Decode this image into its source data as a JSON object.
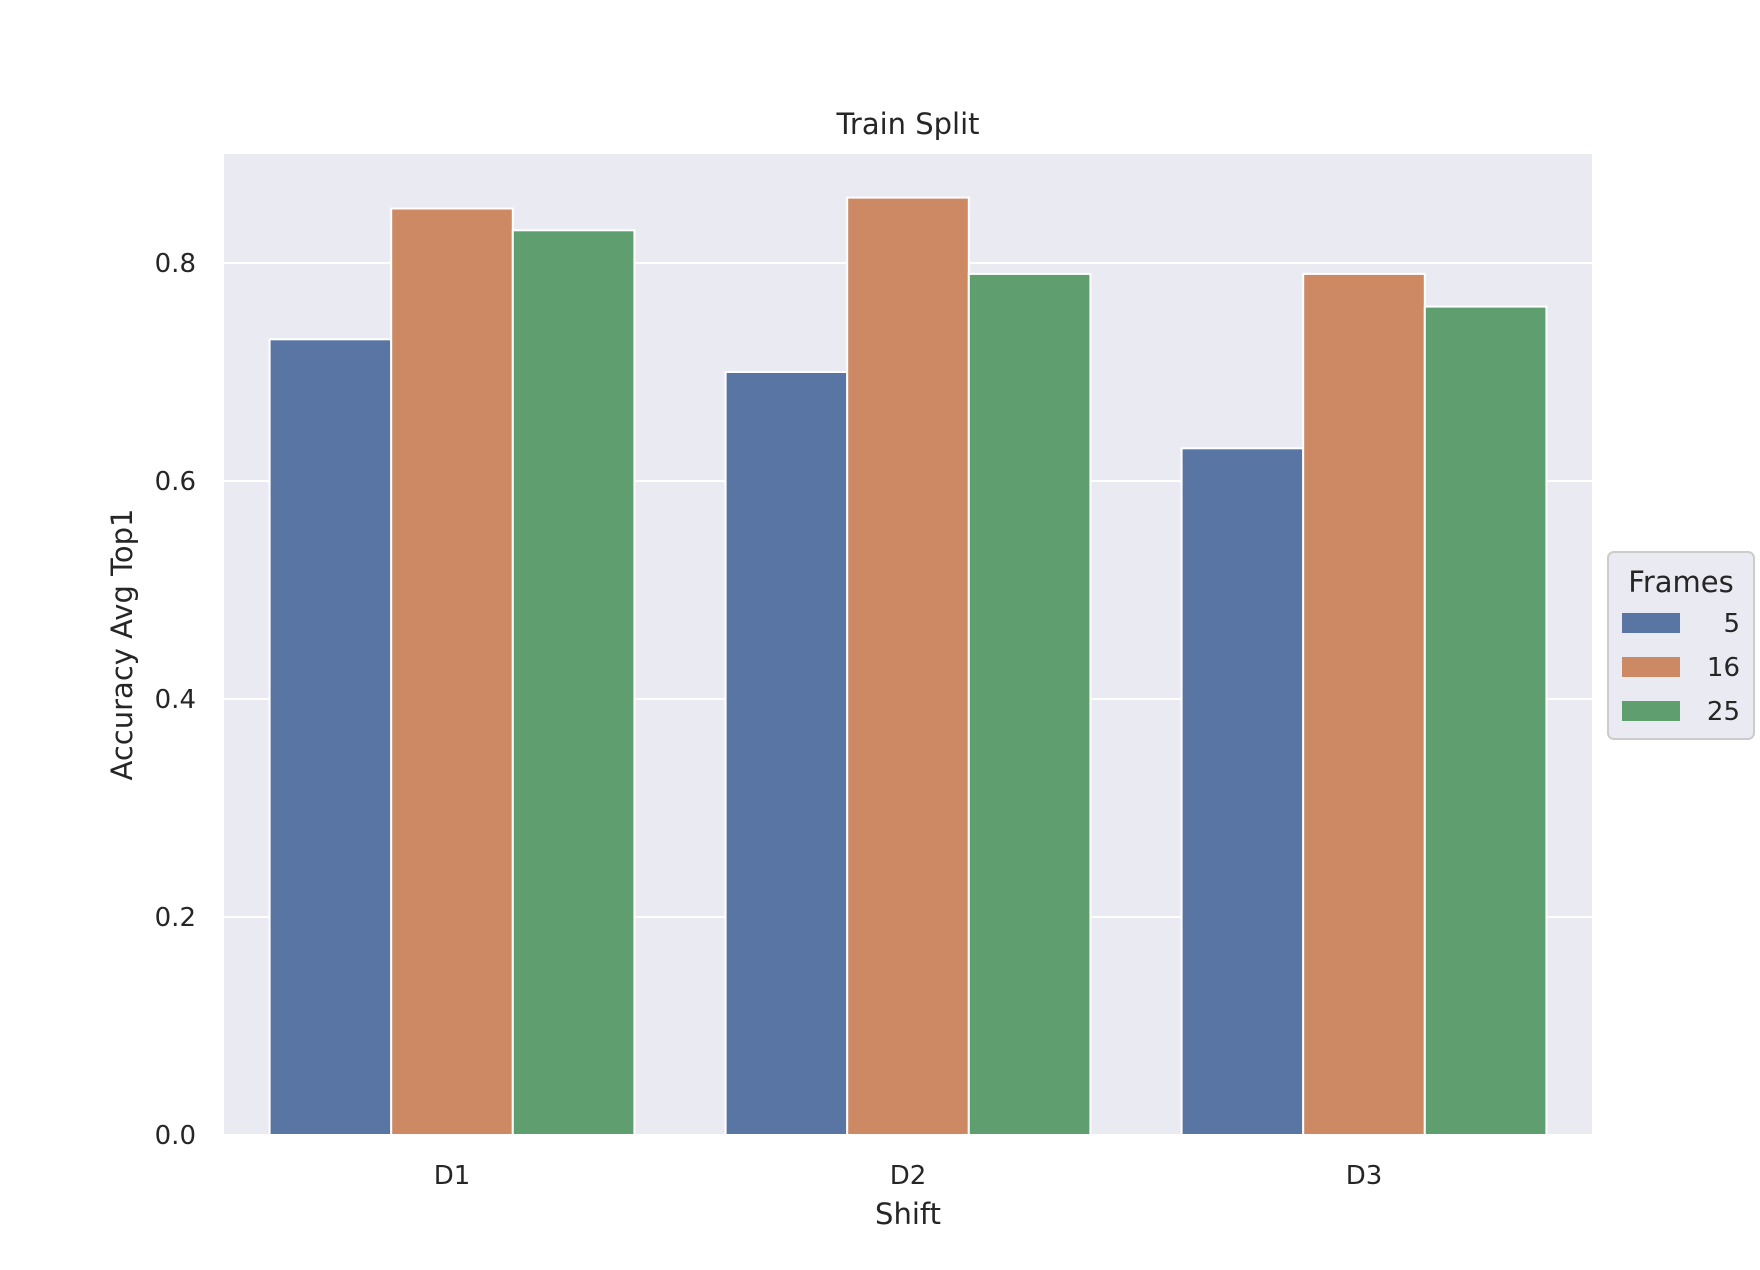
{
  "chart_data": {
    "type": "bar",
    "title": "Train Split",
    "xlabel": "Shift",
    "ylabel": "Accuracy Avg Top1",
    "categories": [
      "D1",
      "D2",
      "D3"
    ],
    "series": [
      {
        "name": "5",
        "values": [
          0.73,
          0.7,
          0.63
        ],
        "color": "#5975a4"
      },
      {
        "name": "16",
        "values": [
          0.85,
          0.86,
          0.79
        ],
        "color": "#cc8963"
      },
      {
        "name": "25",
        "values": [
          0.83,
          0.79,
          0.76
        ],
        "color": "#5f9e6e"
      }
    ],
    "ylim": [
      0,
      0.9
    ],
    "yticks": [
      0.0,
      0.2,
      0.4,
      0.6,
      0.8
    ],
    "ytick_labels": [
      "0.0",
      "0.2",
      "0.4",
      "0.6",
      "0.8"
    ],
    "grid": true,
    "legend": {
      "title": "Frames",
      "placement": "outside-right"
    },
    "colors": {
      "plot_background": "#eaeaf2",
      "grid": "#ffffff",
      "text": "#262626"
    }
  }
}
